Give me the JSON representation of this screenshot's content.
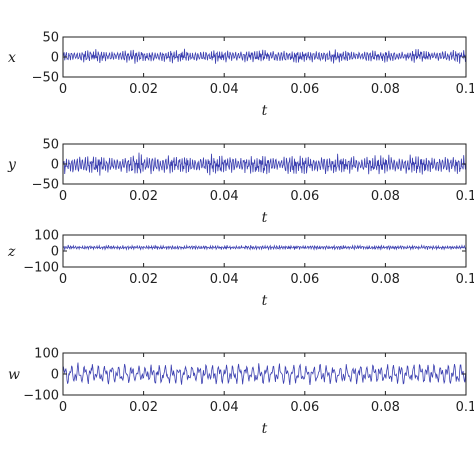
{
  "chart_data": [
    {
      "type": "line",
      "ylabel": "x",
      "xlabel": "t",
      "xlim": [
        0,
        0.1
      ],
      "ylim": [
        -50,
        50
      ],
      "xticks": [
        "0",
        "0.02",
        "0.04",
        "0.06",
        "0.08",
        "0.1"
      ],
      "yticks": [
        "50",
        "0",
        "−50"
      ],
      "series": [
        {
          "color": "#3b3fb0",
          "amplitude": 12,
          "offset": 2,
          "cycles": 150
        }
      ]
    },
    {
      "type": "line",
      "ylabel": "y",
      "xlabel": "t",
      "xlim": [
        0,
        0.1
      ],
      "ylim": [
        -50,
        50
      ],
      "xticks": [
        "0",
        "0.02",
        "0.04",
        "0.06",
        "0.08",
        "0.1"
      ],
      "yticks": [
        "50",
        "0",
        "−50"
      ],
      "series": [
        {
          "color": "#3b3fb0",
          "amplitude": 18,
          "offset": -2,
          "cycles": 150
        }
      ]
    },
    {
      "type": "line",
      "ylabel": "z",
      "xlabel": "t",
      "xlim": [
        0,
        0.1
      ],
      "ylim": [
        -100,
        100
      ],
      "xticks": [
        "0",
        "0.02",
        "0.04",
        "0.06",
        "0.08",
        "0.1"
      ],
      "yticks": [
        "100",
        "0",
        "−100"
      ],
      "series": [
        {
          "color": "#3b3fb0",
          "amplitude": 10,
          "offset": 22,
          "cycles": 170
        }
      ]
    },
    {
      "type": "line",
      "ylabel": "w",
      "xlabel": "t",
      "xlim": [
        0,
        0.1
      ],
      "ylim": [
        -100,
        100
      ],
      "xticks": [
        "0",
        "0.02",
        "0.04",
        "0.06",
        "0.08",
        "0.1"
      ],
      "yticks": [
        "100",
        "0",
        "−100"
      ],
      "series": [
        {
          "color": "#3b3fb0",
          "amplitude": 35,
          "offset": 0,
          "cycles": 60
        }
      ]
    }
  ]
}
